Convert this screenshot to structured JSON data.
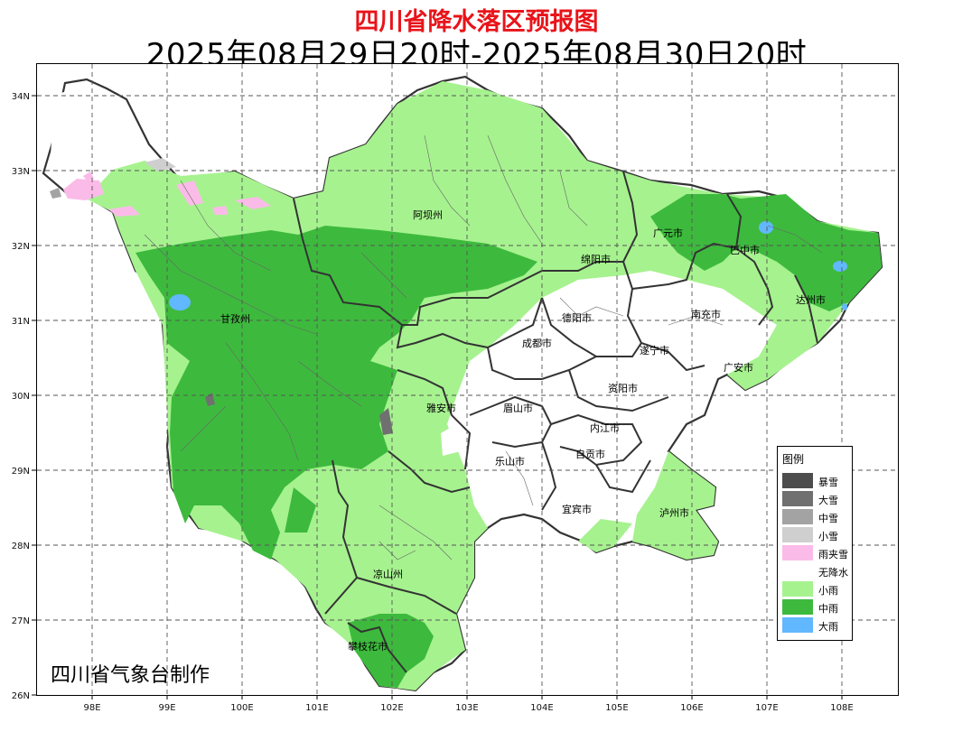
{
  "title": "四川省降水落区预报图",
  "subtitle": "2025年08月29日20时-2025年08月30日20时",
  "credit": "四川省气象台制作",
  "x_axis": {
    "ticks": [
      "98E",
      "99E",
      "100E",
      "101E",
      "102E",
      "103E",
      "104E",
      "105E",
      "106E",
      "107E",
      "108E"
    ]
  },
  "y_axis": {
    "ticks": [
      "34N",
      "33N",
      "32N",
      "31N",
      "30N",
      "29N",
      "28N",
      "27N",
      "26N"
    ]
  },
  "legend": {
    "title": "图例",
    "items": [
      {
        "label": "暴雪",
        "color": "#4d4d4d"
      },
      {
        "label": "大雪",
        "color": "#707070"
      },
      {
        "label": "中雪",
        "color": "#a3a3a3"
      },
      {
        "label": "小雪",
        "color": "#cfcfcf"
      },
      {
        "label": "雨夹雪",
        "color": "#fbbbe8"
      },
      {
        "label": "无降水",
        "color": "#ffffff"
      },
      {
        "label": "小雨",
        "color": "#a6f28f"
      },
      {
        "label": "中雨",
        "color": "#3dba3d"
      },
      {
        "label": "大雨",
        "color": "#61b8ff"
      }
    ]
  },
  "regions": [
    {
      "name": "阿坝州"
    },
    {
      "name": "甘孜州"
    },
    {
      "name": "广元市"
    },
    {
      "name": "巴中市"
    },
    {
      "name": "绵阳市"
    },
    {
      "name": "达州市"
    },
    {
      "name": "德阳市"
    },
    {
      "name": "南充市"
    },
    {
      "name": "成都市"
    },
    {
      "name": "遂宁市"
    },
    {
      "name": "广安市"
    },
    {
      "name": "资阳市"
    },
    {
      "name": "雅安市"
    },
    {
      "name": "眉山市"
    },
    {
      "name": "内江市"
    },
    {
      "name": "乐山市"
    },
    {
      "name": "自贡市"
    },
    {
      "name": "宜宾市"
    },
    {
      "name": "泸州市"
    },
    {
      "name": "凉山州"
    },
    {
      "name": "攀枝花市"
    }
  ]
}
